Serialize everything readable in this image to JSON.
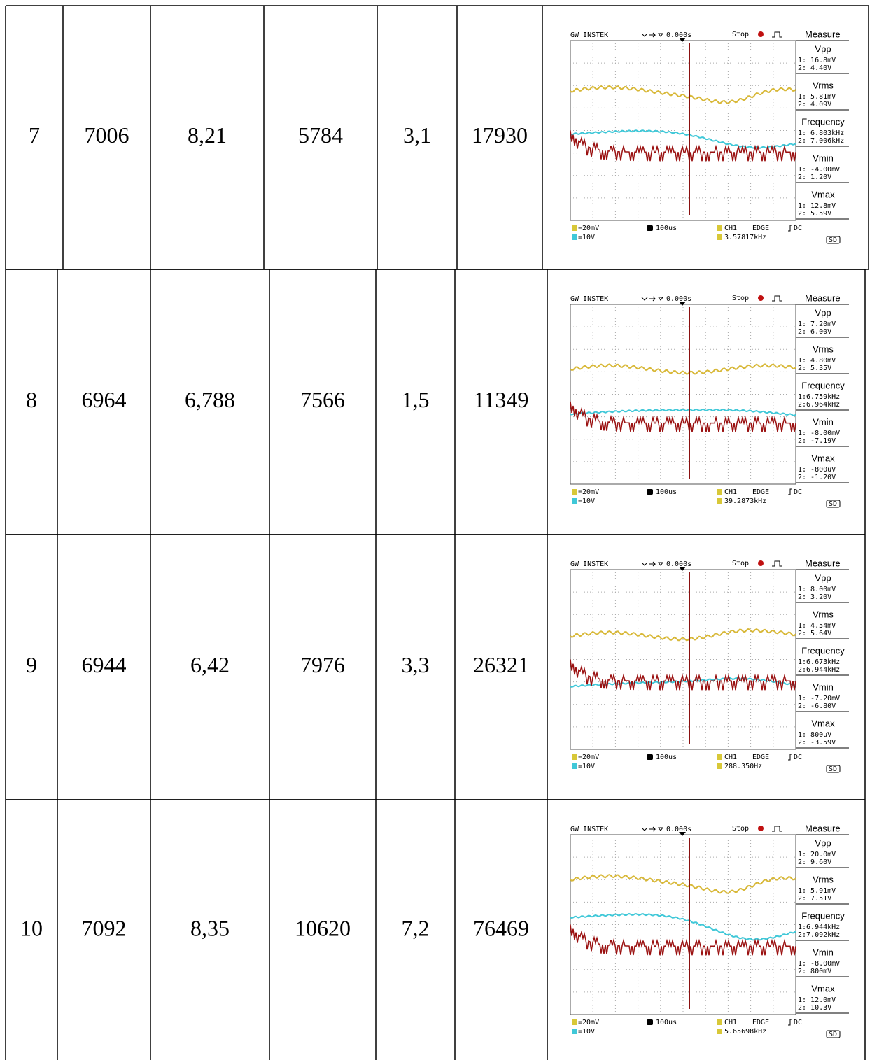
{
  "rows": [
    {
      "cells": [
        "7",
        "7006",
        "8,21",
        "5784",
        "3,1",
        "17930"
      ],
      "scope": {
        "brand": "GW INSTEK",
        "delay": "0.000s",
        "status": "Stop",
        "panel": "Measure",
        "measures": [
          {
            "name": "Vpp",
            "ch1": "1: 16.8mV",
            "ch2": "2: 4.40V"
          },
          {
            "name": "Vrms",
            "ch1": "1: 5.81mV",
            "ch2": "2: 4.09V"
          },
          {
            "name": "Frequency",
            "ch1": "1: 6.803kHz",
            "ch2": "2: 7.006kHz"
          },
          {
            "name": "Vmin",
            "ch1": "1: -4.00mV",
            "ch2": "2: 1.20V"
          },
          {
            "name": "Vmax",
            "ch1": "1: 12.8mV",
            "ch2": "2: 5.59V"
          }
        ],
        "ch1_scale": "=20mV",
        "ch2_scale": "=10V",
        "timebase": "100us",
        "trigger_source": "CH1",
        "trigger_type": "EDGE",
        "coupling": "DC",
        "trigger_freq": "3.57817kHz",
        "storage": "SD"
      }
    },
    {
      "cells": [
        "8",
        "6964",
        "6,788",
        "7566",
        "1,5",
        "11349"
      ],
      "scope": {
        "brand": "GW INSTEK",
        "delay": "0.000s",
        "status": "Stop",
        "panel": "Measure",
        "measures": [
          {
            "name": "Vpp",
            "ch1": "1: 7.20mV",
            "ch2": "2: 6.00V"
          },
          {
            "name": "Vrms",
            "ch1": "1: 4.80mV",
            "ch2": "2: 5.35V"
          },
          {
            "name": "Frequency",
            "ch1": "1:6.759kHz",
            "ch2": "2:6.964kHz"
          },
          {
            "name": "Vmin",
            "ch1": "1: -8.00mV",
            "ch2": "2: -7.19V"
          },
          {
            "name": "Vmax",
            "ch1": "1: -800uV",
            "ch2": "2: -1.20V"
          }
        ],
        "ch1_scale": "=20mV",
        "ch2_scale": "=10V",
        "timebase": "100us",
        "trigger_source": "CH1",
        "trigger_type": "EDGE",
        "coupling": "DC",
        "trigger_freq": "39.2873kHz",
        "storage": "SD"
      }
    },
    {
      "cells": [
        "9",
        "6944",
        "6,42",
        "7976",
        "3,3",
        "26321"
      ],
      "scope": {
        "brand": "GW INSTEK",
        "delay": "0.000s",
        "status": "Stop",
        "panel": "Measure",
        "measures": [
          {
            "name": "Vpp",
            "ch1": "1: 8.00mV",
            "ch2": "2: 3.20V"
          },
          {
            "name": "Vrms",
            "ch1": "1: 4.54mV",
            "ch2": "2: 5.64V"
          },
          {
            "name": "Frequency",
            "ch1": "1:6.673kHz",
            "ch2": "2:6.944kHz"
          },
          {
            "name": "Vmin",
            "ch1": "1: -7.20mV",
            "ch2": "2: -6.80V"
          },
          {
            "name": "Vmax",
            "ch1": "1: 800uV",
            "ch2": "2: -3.59V"
          }
        ],
        "ch1_scale": "=20mV",
        "ch2_scale": "=10V",
        "timebase": "100us",
        "trigger_source": "CH1",
        "trigger_type": "EDGE",
        "coupling": "DC",
        "trigger_freq": "288.350Hz",
        "storage": "SD"
      }
    },
    {
      "cells": [
        "10",
        "7092",
        "8,35",
        "10620",
        "7,2",
        "76469"
      ],
      "scope": {
        "brand": "GW INSTEK",
        "delay": "0.000s",
        "status": "Stop",
        "panel": "Measure",
        "measures": [
          {
            "name": "Vpp",
            "ch1": "1: 20.0mV",
            "ch2": "2: 9.60V"
          },
          {
            "name": "Vrms",
            "ch1": "1: 5.91mV",
            "ch2": "2: 7.51V"
          },
          {
            "name": "Frequency",
            "ch1": "1:6.944kHz",
            "ch2": "2:7.092kHz"
          },
          {
            "name": "Vmin",
            "ch1": "1: -8.00mV",
            "ch2": "2: 800mV"
          },
          {
            "name": "Vmax",
            "ch1": "1: 12.0mV",
            "ch2": "2: 10.3V"
          }
        ],
        "ch1_scale": "=20mV",
        "ch2_scale": "=10V",
        "timebase": "100us",
        "trigger_source": "CH1",
        "trigger_type": "EDGE",
        "coupling": "DC",
        "trigger_freq": "5.65698kHz",
        "storage": "SD"
      }
    }
  ]
}
